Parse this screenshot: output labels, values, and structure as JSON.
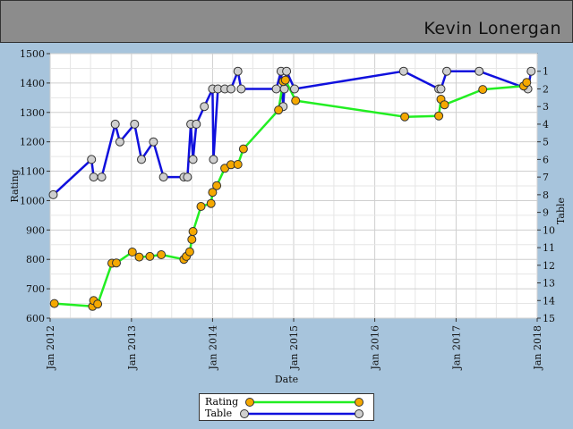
{
  "header": {
    "player_name": "Kevin Lonergan"
  },
  "colors": {
    "rating_line": "#22ee22",
    "rating_marker": "#f5a800",
    "table_line": "#1010dd",
    "table_marker": "#cfcfcf",
    "plot_bg": "#ffffff",
    "page_bg": "#a7c4dc",
    "header_bg": "#8c8c8c"
  },
  "chart_data": {
    "type": "line",
    "xlabel": "Date",
    "ylabel": "Rating",
    "y2label": "Table",
    "xlim": [
      "2012-01-01",
      "2018-01-01"
    ],
    "ylim": [
      600,
      1500
    ],
    "y2lim": [
      15,
      0
    ],
    "x_ticks": [
      "Jan 2012",
      "Jan 2013",
      "Jan 2014",
      "Jan 2015",
      "Jan 2016",
      "Jan 2017",
      "Jan 2018"
    ],
    "y_ticks": [
      600,
      700,
      800,
      900,
      1000,
      1100,
      1200,
      1300,
      1400,
      1500
    ],
    "y2_ticks": [
      1,
      2,
      3,
      4,
      5,
      6,
      7,
      8,
      9,
      10,
      11,
      12,
      13,
      14,
      15
    ],
    "grid": true,
    "legend_position": "bottom-center",
    "series": [
      {
        "name": "Rating",
        "axis": "left",
        "points": [
          [
            "2012-01-20",
            650
          ],
          [
            "2012-07-10",
            640
          ],
          [
            "2012-07-15",
            660
          ],
          [
            "2012-08-02",
            648
          ],
          [
            "2012-10-05",
            787
          ],
          [
            "2012-10-25",
            788
          ],
          [
            "2013-01-05",
            825
          ],
          [
            "2013-02-05",
            808
          ],
          [
            "2013-03-25",
            810
          ],
          [
            "2013-05-15",
            816
          ],
          [
            "2013-08-25",
            800
          ],
          [
            "2013-09-05",
            810
          ],
          [
            "2013-09-20",
            826
          ],
          [
            "2013-09-30",
            868
          ],
          [
            "2013-10-05",
            895
          ],
          [
            "2013-11-10",
            980
          ],
          [
            "2013-12-25",
            990
          ],
          [
            "2014-01-01",
            1028
          ],
          [
            "2014-01-20",
            1051
          ],
          [
            "2014-02-25",
            1110
          ],
          [
            "2014-03-25",
            1122
          ],
          [
            "2014-04-25",
            1123
          ],
          [
            "2014-05-20",
            1176
          ],
          [
            "2014-10-25",
            1308
          ],
          [
            "2014-11-15",
            1405
          ],
          [
            "2014-11-25",
            1410
          ],
          [
            "2015-01-10",
            1340
          ],
          [
            "2016-05-15",
            1285
          ],
          [
            "2016-10-15",
            1288
          ],
          [
            "2016-10-25",
            1345
          ],
          [
            "2016-11-10",
            1326
          ],
          [
            "2017-05-01",
            1378
          ],
          [
            "2017-11-01",
            1390
          ],
          [
            "2017-11-15",
            1402
          ]
        ]
      },
      {
        "name": "Table",
        "axis": "right",
        "points": [
          [
            "2012-01-15",
            8
          ],
          [
            "2012-07-05",
            6
          ],
          [
            "2012-07-15",
            7
          ],
          [
            "2012-08-20",
            7
          ],
          [
            "2012-10-20",
            4
          ],
          [
            "2012-11-10",
            5
          ],
          [
            "2013-01-15",
            4
          ],
          [
            "2013-02-15",
            6
          ],
          [
            "2013-04-10",
            5
          ],
          [
            "2013-05-25",
            7
          ],
          [
            "2013-08-25",
            7
          ],
          [
            "2013-09-10",
            7
          ],
          [
            "2013-09-25",
            4
          ],
          [
            "2013-10-05",
            6
          ],
          [
            "2013-10-20",
            4
          ],
          [
            "2013-11-25",
            3
          ],
          [
            "2014-01-01",
            2
          ],
          [
            "2014-01-05",
            6
          ],
          [
            "2014-01-25",
            2
          ],
          [
            "2014-02-25",
            2
          ],
          [
            "2014-03-25",
            2
          ],
          [
            "2014-04-25",
            1
          ],
          [
            "2014-05-10",
            2
          ],
          [
            "2014-10-15",
            2
          ],
          [
            "2014-11-05",
            1
          ],
          [
            "2014-11-15",
            3
          ],
          [
            "2014-11-20",
            2
          ],
          [
            "2014-11-30",
            1
          ],
          [
            "2015-01-05",
            2
          ],
          [
            "2016-05-10",
            1
          ],
          [
            "2016-10-15",
            2
          ],
          [
            "2016-10-25",
            2
          ],
          [
            "2016-11-20",
            1
          ],
          [
            "2017-04-15",
            1
          ],
          [
            "2017-11-20",
            2
          ],
          [
            "2017-12-05",
            1
          ]
        ]
      }
    ]
  }
}
